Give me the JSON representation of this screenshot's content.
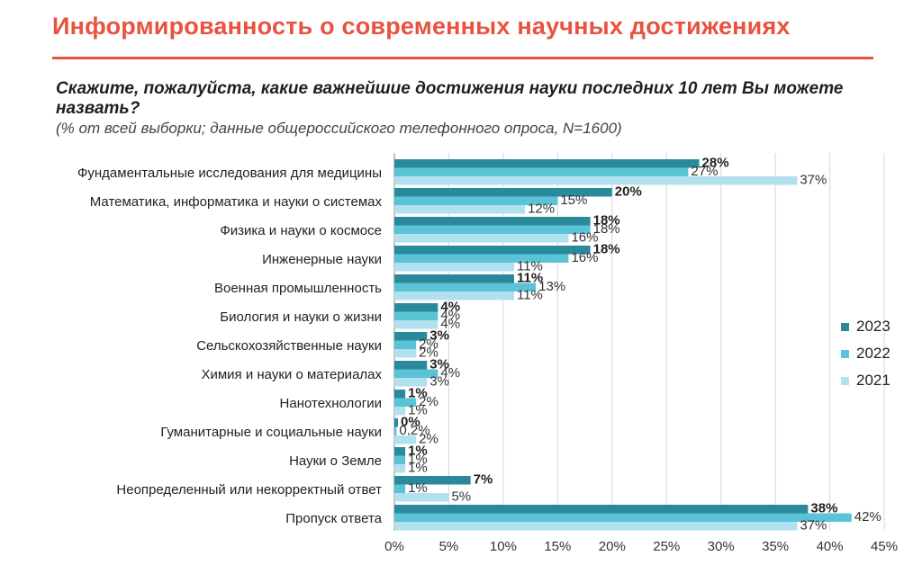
{
  "header": {
    "title": "Информированность о современных научных достижениях",
    "question": "Скажите, пожалуйста, какие важнейшие достижения науки последних 10 лет Вы можете назвать?",
    "note": "(% от всей выборки; данные общероссийского телефонного опроса, N=1600)"
  },
  "colors": {
    "accent": "#e8533f",
    "series_2023": "#2a8a9c",
    "series_2022": "#5bc3d6",
    "series_2021": "#b1e1ee",
    "grid": "#d6d6d6"
  },
  "chart_data": {
    "type": "bar",
    "orientation": "horizontal",
    "categories": [
      "Фундаментальные исследования для медицины",
      "Математика, информатика и науки о системах",
      "Физика и науки о космосе",
      "Инженерные науки",
      "Военная промышленность",
      "Биология и науки о жизни",
      "Сельскохозяйственные науки",
      "Химия и науки о материалах",
      "Нанотехнологии",
      "Гуманитарные и социальные науки",
      "Науки о Земле",
      "Неопределенный или некорректный ответ",
      "Пропуск ответа"
    ],
    "series": [
      {
        "name": "2023",
        "values": [
          28,
          20,
          18,
          18,
          11,
          4,
          3,
          3,
          1,
          0,
          1,
          7,
          38
        ],
        "labels": [
          "28%",
          "20%",
          "18%",
          "18%",
          "11%",
          "4%",
          "3%",
          "3%",
          "1%",
          "0%",
          "1%",
          "7%",
          "38%"
        ]
      },
      {
        "name": "2022",
        "values": [
          27,
          15,
          18,
          16,
          13,
          4,
          2,
          4,
          2,
          0.2,
          1,
          1,
          42
        ],
        "labels": [
          "27%",
          "15%",
          "18%",
          "16%",
          "13%",
          "4%",
          "2%",
          "4%",
          "2%",
          "0,2%",
          "1%",
          "1%",
          "42%"
        ]
      },
      {
        "name": "2021",
        "values": [
          37,
          12,
          16,
          11,
          11,
          4,
          2,
          3,
          1,
          2,
          1,
          5,
          37
        ],
        "labels": [
          "37%",
          "12%",
          "16%",
          "11%",
          "11%",
          "4%",
          "2%",
          "3%",
          "1%",
          "2%",
          "1%",
          "5%",
          "37%"
        ]
      }
    ],
    "xlim": [
      0,
      45
    ],
    "xticks": [
      "0%",
      "5%",
      "10%",
      "15%",
      "20%",
      "25%",
      "30%",
      "35%",
      "40%",
      "45%"
    ],
    "grid": true,
    "legend": "right"
  }
}
